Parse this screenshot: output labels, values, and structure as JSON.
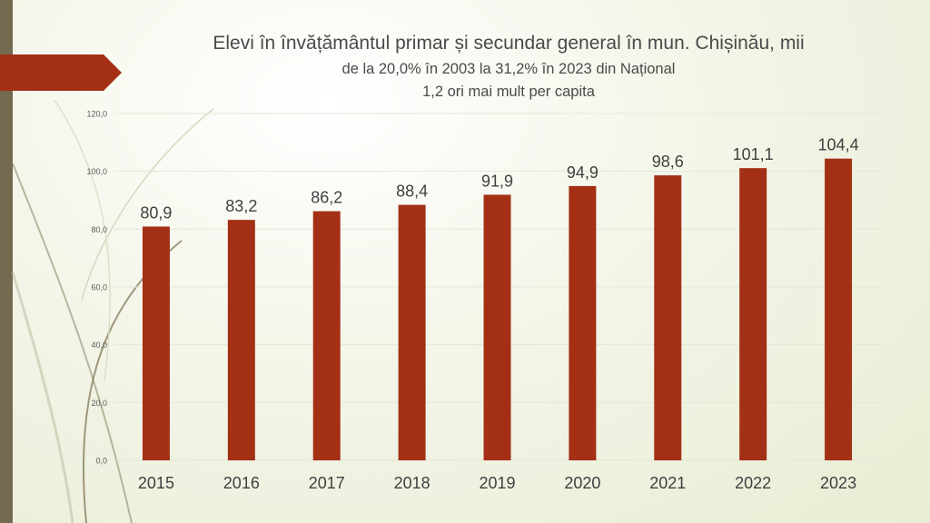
{
  "slide": {
    "title": "Elevi în învățământul primar și secundar general în mun. Chișinău, mii",
    "subtitle_1": "de la 20,0% în 2003 la 31,2% în 2023 din Național",
    "subtitle_2": "1,2 ori mai mult per capita",
    "colors": {
      "bar": "#a33015",
      "banner": "#a33015",
      "strip": "#736a4f",
      "gridline": "#e4e7d6",
      "text": "#404040"
    }
  },
  "chart_data": {
    "type": "bar",
    "categories": [
      "2015",
      "2016",
      "2017",
      "2018",
      "2019",
      "2020",
      "2021",
      "2022",
      "2023"
    ],
    "values": [
      80.9,
      83.2,
      86.2,
      88.4,
      91.9,
      94.9,
      98.6,
      101.1,
      104.4
    ],
    "data_labels": [
      "80,9",
      "83,2",
      "86,2",
      "88,4",
      "91,9",
      "94,9",
      "98,6",
      "101,1",
      "104,4"
    ],
    "y_ticks": [
      0,
      20,
      40,
      60,
      80,
      100,
      120
    ],
    "y_tick_labels": [
      "0,0",
      "20,0",
      "40,0",
      "60,0",
      "80,0",
      "100,0",
      "120,0"
    ],
    "ylim": [
      0,
      120
    ],
    "grid": true,
    "legend": "none",
    "title": "Elevi în învățământul primar și secundar general în mun. Chișinău, mii",
    "xlabel": "",
    "ylabel": ""
  }
}
